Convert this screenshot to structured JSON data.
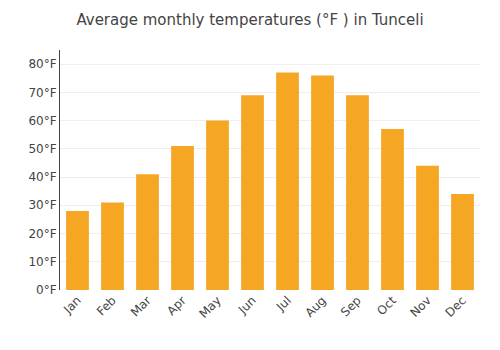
{
  "chart_data": {
    "type": "bar",
    "title": "Average monthly temperatures (°F ) in Tunceli",
    "categories": [
      "Jan",
      "Feb",
      "Mar",
      "Apr",
      "May",
      "Jun",
      "Jul",
      "Aug",
      "Sep",
      "Oct",
      "Nov",
      "Dec"
    ],
    "values": [
      28,
      31,
      41,
      51,
      60,
      69,
      77,
      76,
      69,
      57,
      44,
      34
    ],
    "color": "#F5A623",
    "ylim": [
      0,
      85
    ],
    "yticks": [
      {
        "value": 0,
        "label": "0°F"
      },
      {
        "value": 10,
        "label": "10°F"
      },
      {
        "value": 20,
        "label": "20°F"
      },
      {
        "value": 30,
        "label": "30°F"
      },
      {
        "value": 40,
        "label": "40°F"
      },
      {
        "value": 50,
        "label": "50°F"
      },
      {
        "value": 60,
        "label": "60°F"
      },
      {
        "value": 70,
        "label": "70°F"
      },
      {
        "value": 80,
        "label": "80°F"
      }
    ],
    "grid": true
  }
}
